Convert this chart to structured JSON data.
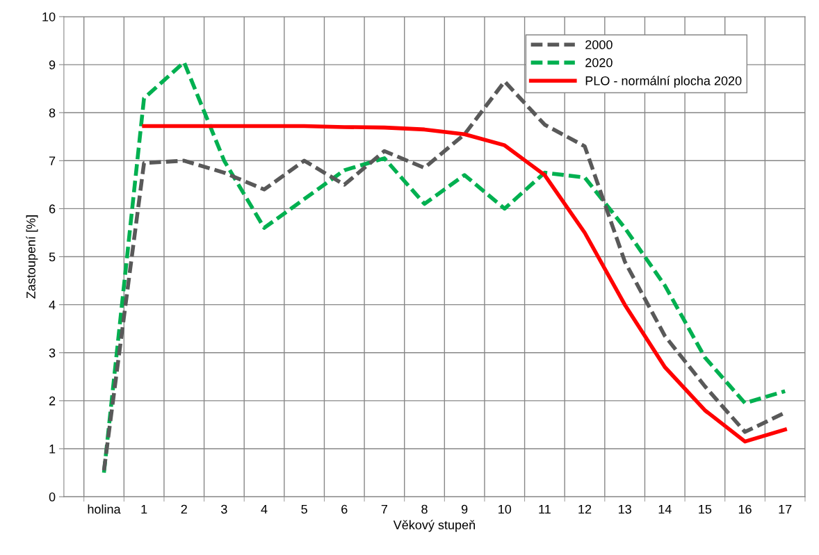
{
  "chart_data": {
    "type": "line",
    "xlabel": "Věkový stupeň",
    "ylabel": "Zastoupení [%]",
    "categories": [
      "holina",
      "1",
      "2",
      "3",
      "4",
      "5",
      "6",
      "7",
      "8",
      "9",
      "10",
      "11",
      "12",
      "13",
      "14",
      "15",
      "16",
      "17"
    ],
    "series": [
      {
        "name": "2000",
        "color": "#595959",
        "line_style": "dashed",
        "values": [
          0.55,
          6.95,
          7.0,
          6.75,
          6.4,
          7.0,
          6.5,
          7.2,
          6.85,
          7.55,
          8.65,
          7.75,
          7.3,
          4.9,
          3.35,
          2.3,
          1.35,
          1.75
        ]
      },
      {
        "name": "2020",
        "color": "#00b050",
        "line_style": "dashed",
        "values": [
          0.5,
          8.3,
          9.05,
          7.0,
          5.6,
          6.2,
          6.8,
          7.05,
          6.1,
          6.7,
          6.0,
          6.75,
          6.65,
          5.6,
          4.4,
          2.9,
          1.95,
          2.2
        ]
      },
      {
        "name": "PLO - normální plocha 2020",
        "color": "#ff0000",
        "line_style": "solid",
        "values": [
          null,
          7.72,
          7.72,
          7.72,
          7.72,
          7.72,
          7.7,
          7.69,
          7.65,
          7.55,
          7.32,
          6.7,
          5.5,
          4.0,
          2.7,
          1.8,
          1.15,
          1.4
        ]
      }
    ],
    "ylim": [
      0,
      10
    ],
    "yticks": [
      0,
      1,
      2,
      3,
      4,
      5,
      6,
      7,
      8,
      9,
      10
    ],
    "grid": true,
    "legend": "top right"
  }
}
